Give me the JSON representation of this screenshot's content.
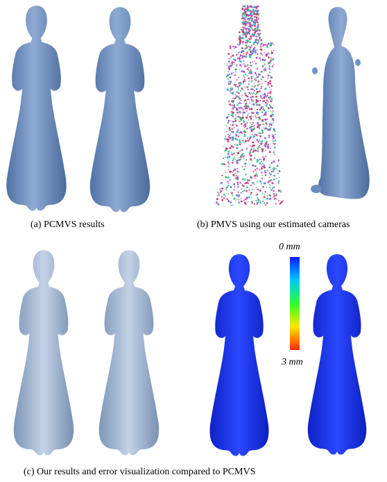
{
  "captions": {
    "a": "(a) PCMVS results",
    "b": "(b) PMVS using our estimated cameras",
    "c": "(c) Our results and error visualization compared to PCMVS"
  },
  "colorbar": {
    "top_label": "0 mm",
    "bottom_label": "3 mm",
    "colors": [
      "#0a1aff",
      "#00c8ff",
      "#2dff2d",
      "#ffe600",
      "#ff2a00"
    ]
  },
  "colors": {
    "mesh_blue": "#6f93c3",
    "mesh_light": "#a9c0de",
    "error_blue": "#1636e8"
  }
}
